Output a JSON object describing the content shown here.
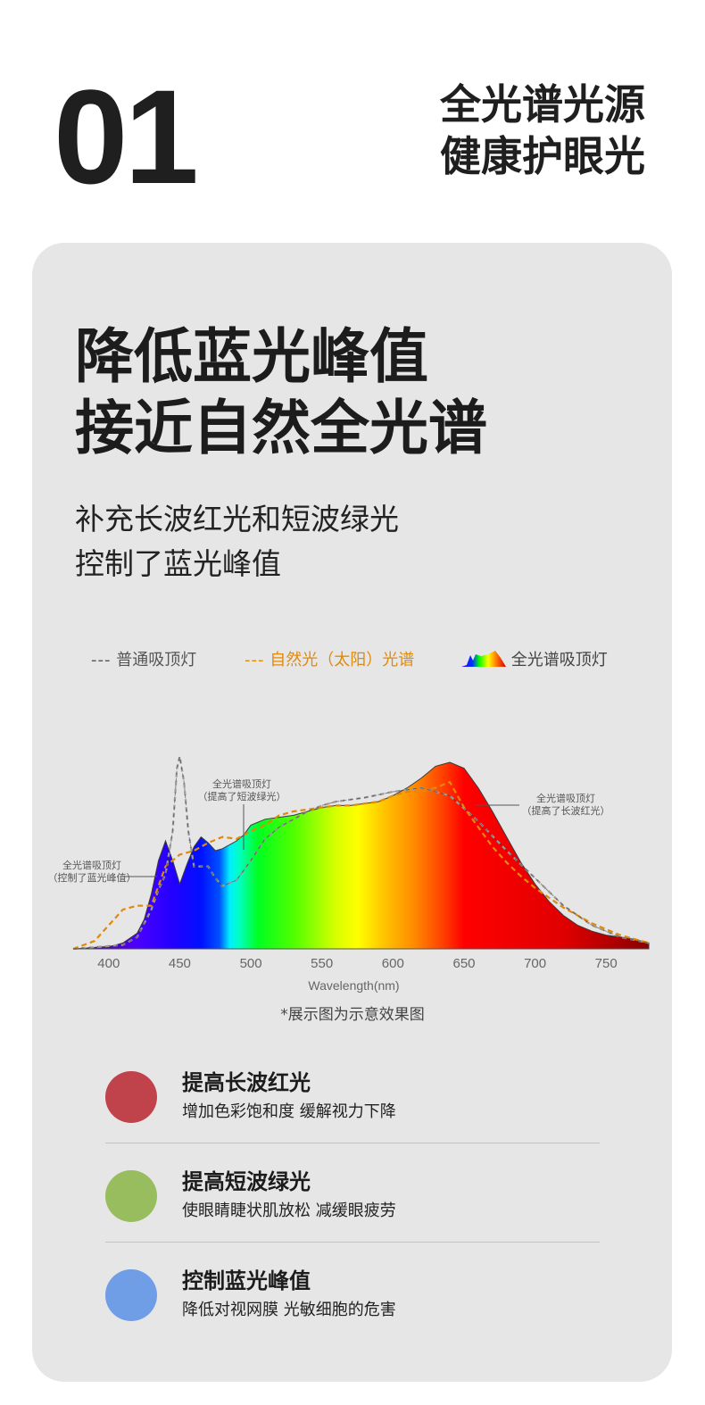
{
  "header": {
    "number": "01",
    "title_line1": "全光谱光源",
    "title_line2": "健康护眼光"
  },
  "card": {
    "headline_line1": "降低蓝光峰值",
    "headline_line2": "接近自然全光谱",
    "sub_line1": "补充长波红光和短波绿光",
    "sub_line2": "控制了蓝光峰值",
    "note": "*展示图为示意效果图"
  },
  "legend": {
    "normal": "普通吸顶灯",
    "sun": "自然光（太阳）光谱",
    "full": "全光谱吸顶灯"
  },
  "chart_data": {
    "type": "area",
    "xlabel": "Wavelength(nm)",
    "xlim": [
      375,
      780
    ],
    "ylim": [
      0,
      1
    ],
    "ticks": [
      400,
      450,
      500,
      550,
      600,
      650,
      700,
      750
    ],
    "colors": {
      "normal": "#9a9a9a",
      "sun": "#e08a0c",
      "full_outline": "#3a3a3a"
    },
    "series": [
      {
        "name": "全光谱吸顶灯",
        "x": [
          375,
          400,
          410,
          420,
          425,
          430,
          435,
          440,
          445,
          450,
          455,
          460,
          465,
          470,
          475,
          480,
          485,
          490,
          495,
          500,
          510,
          520,
          530,
          540,
          550,
          560,
          570,
          580,
          590,
          600,
          610,
          620,
          630,
          640,
          650,
          660,
          670,
          680,
          690,
          700,
          710,
          720,
          730,
          740,
          750,
          760,
          770,
          780
        ],
        "values": [
          0.0,
          0.01,
          0.03,
          0.08,
          0.15,
          0.28,
          0.45,
          0.55,
          0.45,
          0.33,
          0.43,
          0.52,
          0.57,
          0.54,
          0.5,
          0.51,
          0.53,
          0.55,
          0.58,
          0.63,
          0.66,
          0.67,
          0.68,
          0.7,
          0.72,
          0.73,
          0.73,
          0.74,
          0.75,
          0.78,
          0.82,
          0.87,
          0.93,
          0.95,
          0.92,
          0.82,
          0.7,
          0.57,
          0.44,
          0.33,
          0.24,
          0.17,
          0.12,
          0.09,
          0.07,
          0.06,
          0.05,
          0.03
        ]
      },
      {
        "name": "普通吸顶灯",
        "x": [
          375,
          410,
          420,
          430,
          435,
          440,
          445,
          448,
          450,
          453,
          456,
          460,
          465,
          470,
          475,
          480,
          490,
          500,
          510,
          520,
          530,
          540,
          550,
          560,
          580,
          600,
          620,
          640,
          660,
          680,
          700,
          720,
          740,
          760,
          780
        ],
        "values": [
          0.0,
          0.02,
          0.06,
          0.2,
          0.3,
          0.38,
          0.6,
          0.92,
          0.98,
          0.85,
          0.6,
          0.42,
          0.42,
          0.42,
          0.36,
          0.32,
          0.35,
          0.45,
          0.56,
          0.62,
          0.66,
          0.7,
          0.73,
          0.75,
          0.77,
          0.8,
          0.82,
          0.78,
          0.65,
          0.5,
          0.36,
          0.22,
          0.12,
          0.06,
          0.03
        ]
      },
      {
        "name": "自然光（太阳）光谱",
        "x": [
          375,
          390,
          400,
          410,
          420,
          430,
          440,
          450,
          460,
          470,
          480,
          490,
          500,
          510,
          520,
          530,
          540,
          550,
          560,
          570,
          580,
          590,
          600,
          610,
          620,
          630,
          640,
          650,
          660,
          670,
          680,
          690,
          700,
          720,
          740,
          760,
          780
        ],
        "values": [
          0.0,
          0.04,
          0.12,
          0.2,
          0.22,
          0.22,
          0.42,
          0.48,
          0.5,
          0.54,
          0.57,
          0.56,
          0.6,
          0.63,
          0.68,
          0.7,
          0.71,
          0.72,
          0.73,
          0.73,
          0.74,
          0.75,
          0.78,
          0.8,
          0.8,
          0.82,
          0.85,
          0.72,
          0.62,
          0.52,
          0.44,
          0.37,
          0.31,
          0.21,
          0.13,
          0.07,
          0.03
        ]
      }
    ],
    "annotations": [
      {
        "text_line1": "全光谱吸顶灯",
        "text_line2": "（控制了蓝光峰值）"
      },
      {
        "text_line1": "全光谱吸顶灯",
        "text_line2": "（提高了短波绿光）"
      },
      {
        "text_line1": "全光谱吸顶灯",
        "text_line2": "（提高了长波红光）"
      }
    ]
  },
  "features": [
    {
      "title": "提高长波红光",
      "desc": "增加色彩饱和度 缓解视力下降",
      "color": "#c0434b"
    },
    {
      "title": "提高短波绿光",
      "desc": "使眼睛睫状肌放松 减缓眼疲劳",
      "color": "#98bd5e"
    },
    {
      "title": "控制蓝光峰值",
      "desc": "降低对视网膜 光敏细胞的危害",
      "color": "#709ee6"
    }
  ]
}
